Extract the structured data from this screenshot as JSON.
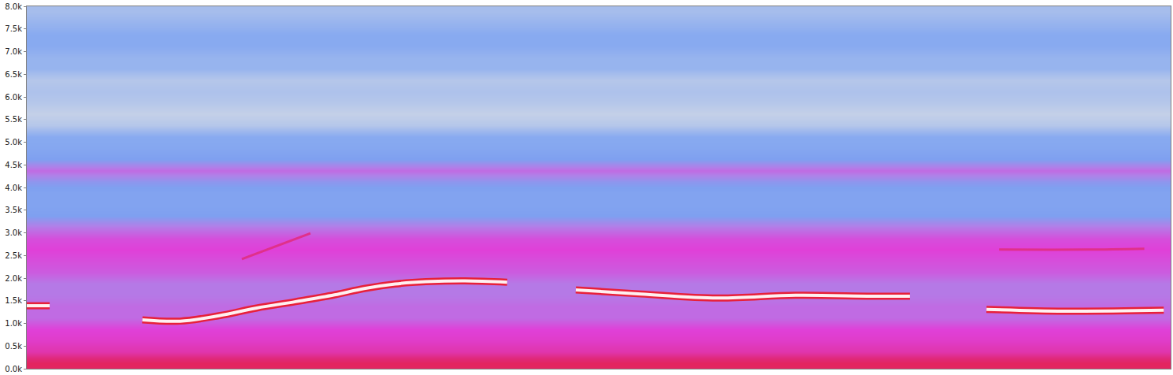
{
  "chart_data": {
    "type": "heatmap",
    "tick_labels": "y",
    "xlim": [
      0,
      100
    ],
    "ylim": [
      0,
      8000
    ],
    "yticks": [
      {
        "value": 0,
        "label": "0.0k"
      },
      {
        "value": 500,
        "label": "0.5k"
      },
      {
        "value": 1000,
        "label": "1.0k"
      },
      {
        "value": 1500,
        "label": "1.5k"
      },
      {
        "value": 2000,
        "label": "2.0k"
      },
      {
        "value": 2500,
        "label": "2.5k"
      },
      {
        "value": 3000,
        "label": "3.0k"
      },
      {
        "value": 3500,
        "label": "3.5k"
      },
      {
        "value": 4000,
        "label": "4.0k"
      },
      {
        "value": 4500,
        "label": "4.5k"
      },
      {
        "value": 5000,
        "label": "5.0k"
      },
      {
        "value": 5500,
        "label": "5.5k"
      },
      {
        "value": 6000,
        "label": "6.0k"
      },
      {
        "value": 6500,
        "label": "6.5k"
      },
      {
        "value": 7000,
        "label": "7.0k"
      },
      {
        "value": 7500,
        "label": "7.5k"
      },
      {
        "value": 8000,
        "label": "8.0k"
      }
    ],
    "zlim": [
      0,
      100
    ],
    "cells": {
      "x": [
        0,
        100
      ],
      "y": [
        0,
        250,
        500,
        750,
        1000,
        1250,
        1500,
        1750,
        2000,
        2250,
        2500,
        2750,
        3000,
        3250,
        3500,
        3750,
        4000,
        4250,
        4500,
        4750,
        5000,
        5250,
        5500,
        5750,
        6000,
        6250,
        6500,
        6750,
        7000,
        7250,
        7500,
        7750,
        8000
      ],
      "z": [
        [
          60
        ],
        [
          48
        ],
        [
          44
        ],
        [
          42
        ],
        [
          36
        ],
        [
          36
        ],
        [
          34
        ],
        [
          34
        ],
        [
          38
        ],
        [
          40
        ],
        [
          42
        ],
        [
          40
        ],
        [
          34
        ],
        [
          26
        ],
        [
          24
        ],
        [
          24
        ],
        [
          28
        ],
        [
          36
        ],
        [
          26
        ],
        [
          22
        ],
        [
          20
        ],
        [
          14
        ],
        [
          12
        ],
        [
          14
        ],
        [
          15
        ],
        [
          14
        ],
        [
          18
        ],
        [
          18
        ],
        [
          20
        ],
        [
          20
        ],
        [
          18
        ],
        [
          16
        ]
      ]
    },
    "series": [
      {
        "color": "#fff0f0",
        "x": [
          0,
          2.0
        ],
        "values": [
          1390,
          1390
        ]
      },
      {
        "color": "#fff0f0",
        "x": [
          10.1,
          13.4,
          16.8,
          20.1,
          23.5,
          26.9,
          29.5,
          32.2,
          34.9,
          38.3,
          42.0
        ],
        "values": [
          1080,
          1050,
          1170,
          1340,
          1480,
          1630,
          1770,
          1870,
          1920,
          1940,
          1910
        ]
      },
      {
        "color": "#fff0f0",
        "x": [
          48.0,
          53.7,
          60.4,
          67.2,
          73.9,
          77.2
        ],
        "values": [
          1740,
          1650,
          1560,
          1620,
          1600,
          1600
        ]
      },
      {
        "color": "#fff0f0",
        "x": [
          83.9,
          90.7,
          99.4
        ],
        "values": [
          1310,
          1270,
          1290
        ]
      },
      {
        "color": "#e0308a",
        "x": [
          85.0,
          92.7,
          97.7
        ],
        "values": [
          2630,
          2630,
          2650
        ]
      },
      {
        "color": "#e0308a",
        "x": [
          18.8,
          24.8
        ],
        "values": [
          2420,
          2990
        ]
      }
    ]
  }
}
